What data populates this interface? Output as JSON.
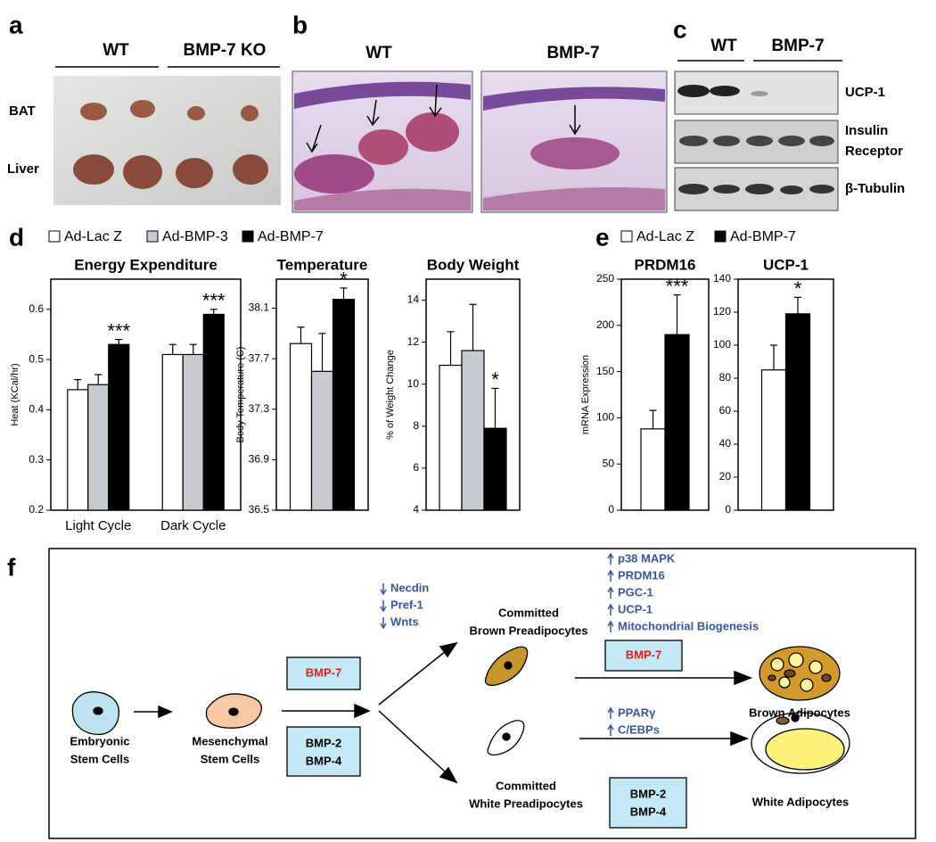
{
  "figure": {
    "panel_a": {
      "letter": "a",
      "columns": [
        "WT",
        "BMP-7 KO"
      ],
      "rows": [
        "BAT",
        "Liver"
      ]
    },
    "panel_b": {
      "letter": "b",
      "columns": [
        "WT",
        "BMP-7"
      ]
    },
    "panel_c": {
      "letter": "c",
      "columns": [
        "WT",
        "BMP-7"
      ],
      "rows": [
        [
          "UCP-1"
        ],
        [
          "Insulin",
          "Receptor"
        ],
        [
          "β-Tubulin"
        ]
      ]
    },
    "panel_d": {
      "letter": "d"
    },
    "panel_e": {
      "letter": "e"
    },
    "panel_f": {
      "letter": "f",
      "nodes": [
        {
          "lines": [
            "Embryonic",
            "Stem Cells"
          ]
        },
        {
          "lines": [
            "Mesenchymal",
            "Stem Cells"
          ]
        },
        {
          "lines": [
            "Committed",
            "Brown Preadipocytes"
          ]
        },
        {
          "lines": [
            "Committed",
            "White Preadipocytes"
          ]
        },
        {
          "lines": [
            "Brown Adipocytes"
          ]
        },
        {
          "lines": [
            "White Adipocytes"
          ]
        }
      ],
      "factors": [
        {
          "lines": [
            "BMP-7"
          ]
        },
        {
          "lines": [
            "BMP-2",
            "BMP-4"
          ]
        },
        {
          "lines": [
            "BMP-7"
          ]
        },
        {
          "lines": [
            "BMP-2",
            "BMP-4"
          ]
        }
      ],
      "down_regulated": [
        "Necdin",
        "Pref-1",
        "Wnts"
      ],
      "brown_up": [
        "p38 MAPK",
        "PRDM16",
        "PGC-1",
        "UCP-1",
        "Mitochondrial Biogenesis"
      ],
      "white_up": [
        "PPARγ",
        "C/EBPs"
      ]
    }
  },
  "chart_data": [
    {
      "type": "bar",
      "title": "Energy Expenditure",
      "y_label": "Heat (KCal/hr)",
      "categories": [
        "Light Cycle",
        "Dark Cycle"
      ],
      "series": [
        {
          "name": "Ad-Lac Z",
          "color": "#ffffff",
          "values": [
            0.44,
            0.51
          ],
          "errors": [
            0.02,
            0.02
          ]
        },
        {
          "name": "Ad-BMP-3",
          "color": "#c6cbd1",
          "values": [
            0.45,
            0.51
          ],
          "errors": [
            0.02,
            0.02
          ]
        },
        {
          "name": "Ad-BMP-7",
          "color": "#000000",
          "values": [
            0.53,
            0.59
          ],
          "errors": [
            0.01,
            0.01
          ],
          "annotations": [
            "***",
            "***"
          ]
        }
      ],
      "ylim": [
        0.2,
        0.66
      ],
      "yticks": [
        0.2,
        0.3,
        0.4,
        0.5,
        0.6
      ]
    },
    {
      "type": "bar",
      "title": "Temperature",
      "y_label": "Body Temperature (C)",
      "categories": [
        null
      ],
      "series": [
        {
          "color": "#ffffff",
          "values": [
            37.82
          ],
          "errors": [
            0.13
          ]
        },
        {
          "color": "#c6cbd1",
          "values": [
            37.6
          ],
          "errors": [
            0.3
          ]
        },
        {
          "color": "#000000",
          "values": [
            38.17
          ],
          "errors": [
            0.09
          ],
          "annotations": [
            "*"
          ]
        }
      ],
      "ylim": [
        36.5,
        38.33
      ],
      "yticks": [
        36.5,
        36.9,
        37.3,
        37.7,
        38.1
      ]
    },
    {
      "type": "bar",
      "title": "Body Weight",
      "y_label": "% of Weight Change",
      "categories": [
        null
      ],
      "series": [
        {
          "color": "#ffffff",
          "values": [
            10.9
          ],
          "errors": [
            1.6
          ]
        },
        {
          "color": "#c6cbd1",
          "values": [
            11.6
          ],
          "errors": [
            2.2
          ]
        },
        {
          "color": "#000000",
          "values": [
            7.9
          ],
          "errors": [
            1.9
          ],
          "annotations": [
            "*"
          ]
        }
      ],
      "ylim": [
        4,
        15
      ],
      "yticks": [
        4,
        6,
        8,
        10,
        12,
        14
      ]
    },
    {
      "type": "bar",
      "title": "PRDM16",
      "y_label": "mRNA Expression",
      "categories": [
        null
      ],
      "series": [
        {
          "name": "Ad-Lac Z",
          "color": "#ffffff",
          "values": [
            88
          ],
          "errors": [
            20
          ]
        },
        {
          "name": "Ad-BMP-7",
          "color": "#000000",
          "values": [
            190
          ],
          "errors": [
            43
          ],
          "annotations": [
            "***"
          ]
        }
      ],
      "ylim": [
        0,
        250
      ],
      "yticks": [
        0,
        50,
        100,
        150,
        200,
        250
      ]
    },
    {
      "type": "bar",
      "title": "UCP-1",
      "categories": [
        null
      ],
      "series": [
        {
          "color": "#ffffff",
          "values": [
            85
          ],
          "errors": [
            15
          ]
        },
        {
          "color": "#000000",
          "values": [
            119
          ],
          "errors": [
            10
          ],
          "annotations": [
            "*"
          ]
        }
      ],
      "ylim": [
        0,
        140
      ],
      "yticks": [
        0,
        20,
        40,
        60,
        80,
        100,
        120,
        140
      ]
    }
  ]
}
